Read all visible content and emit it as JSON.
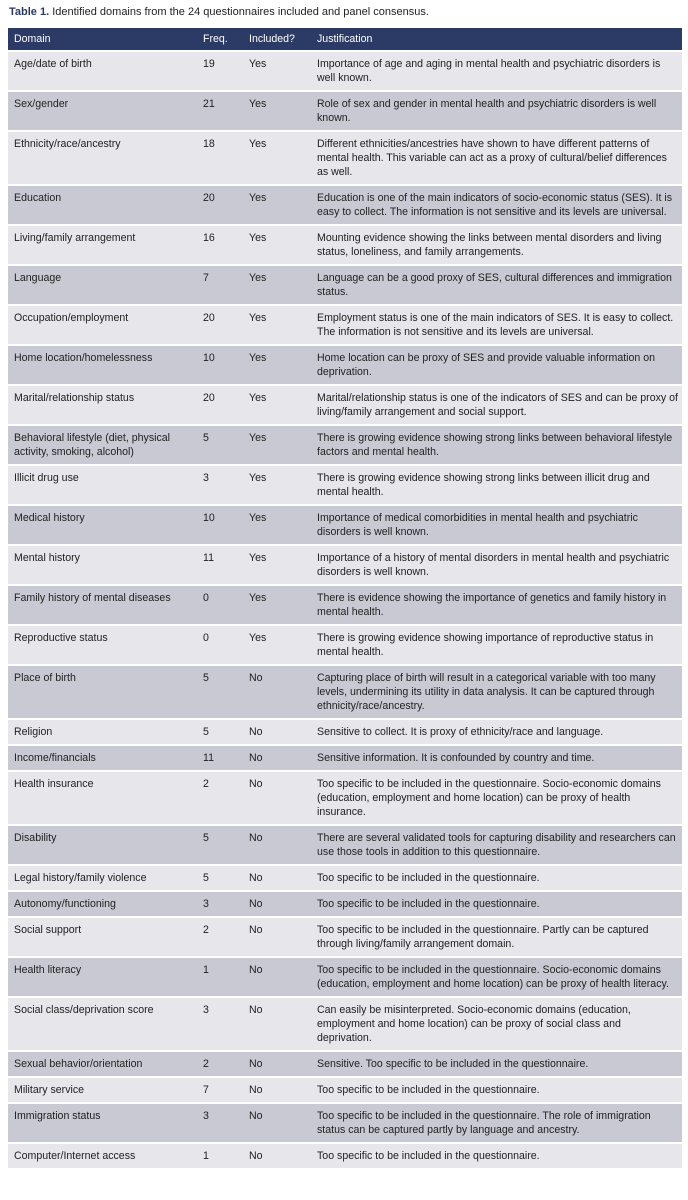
{
  "caption": {
    "label": "Table 1.",
    "text": "Identified domains from the 24 questionnaires included and panel consensus."
  },
  "colors": {
    "header": "#2c3b65",
    "row_light": "#e6e6eb",
    "row_dark": "#c9c9d3"
  },
  "headers": [
    "Domain",
    "Freq.",
    "Included?",
    "Justification"
  ],
  "rows": [
    [
      "Age/date of birth",
      "19",
      "Yes",
      "Importance of age and aging in mental health and psychiatric disorders is well known."
    ],
    [
      "Sex/gender",
      "21",
      "Yes",
      "Role of sex and gender in mental health and psychiatric disorders is well known."
    ],
    [
      "Ethnicity/race/ancestry",
      "18",
      "Yes",
      "Different ethnicities/ancestries have shown to have different patterns of mental health. This variable can act as a proxy of cultural/belief differences as well."
    ],
    [
      "Education",
      "20",
      "Yes",
      "Education is one of the main indicators of socio-economic status (SES). It is easy to collect. The information is not sensitive and its levels are universal."
    ],
    [
      "Living/family arrangement",
      "16",
      "Yes",
      "Mounting evidence showing the links between mental disorders and living status, loneliness, and family arrangements."
    ],
    [
      "Language",
      "7",
      "Yes",
      "Language can be a good proxy of SES, cultural differences and immigration status."
    ],
    [
      "Occupation/employment",
      "20",
      "Yes",
      "Employment status is one of the main indicators of SES. It is easy to collect. The information is not sensitive and its levels are universal."
    ],
    [
      "Home location/homelessness",
      "10",
      "Yes",
      "Home location can be proxy of SES and provide valuable information on deprivation."
    ],
    [
      "Marital/relationship status",
      "20",
      "Yes",
      "Marital/relationship status is one of the indicators of SES and can be proxy of living/family arrangement and social support."
    ],
    [
      "Behavioral lifestyle (diet, physical activity, smoking, alcohol)",
      "5",
      "Yes",
      "There is growing evidence showing strong links between behavioral lifestyle factors and mental health."
    ],
    [
      "Illicit drug use",
      "3",
      "Yes",
      "There is growing evidence showing strong links between illicit drug and mental health."
    ],
    [
      "Medical history",
      "10",
      "Yes",
      "Importance of medical comorbidities in mental health and psychiatric disorders is well known."
    ],
    [
      "Mental history",
      "11",
      "Yes",
      "Importance of a history of mental disorders in mental health and psychiatric disorders is well known."
    ],
    [
      "Family history of mental diseases",
      "0",
      "Yes",
      "There is evidence showing the importance of genetics and family history in mental health."
    ],
    [
      "Reproductive status",
      "0",
      "Yes",
      "There is growing evidence showing importance of reproductive status in mental health."
    ],
    [
      "Place of birth",
      "5",
      "No",
      "Capturing place of birth will result in a categorical variable with too many levels, undermining its utility in data analysis. It can be captured through ethnicity/race/ancestry."
    ],
    [
      "Religion",
      "5",
      "No",
      "Sensitive to collect. It is proxy of ethnicity/race and language."
    ],
    [
      "Income/financials",
      "11",
      "No",
      "Sensitive information. It is confounded by country and time."
    ],
    [
      "Health insurance",
      "2",
      "No",
      "Too specific to be included in the questionnaire. Socio-economic domains (education, employment and home location) can be proxy of health insurance."
    ],
    [
      "Disability",
      "5",
      "No",
      "There are several validated tools for capturing disability and researchers can use those tools in addition to this questionnaire."
    ],
    [
      "Legal history/family violence",
      "5",
      "No",
      "Too specific to be included in the questionnaire."
    ],
    [
      "Autonomy/functioning",
      "3",
      "No",
      "Too specific to be included in the questionnaire."
    ],
    [
      "Social support",
      "2",
      "No",
      "Too specific to be included in the questionnaire. Partly can be captured through living/family arrangement domain."
    ],
    [
      "Health literacy",
      "1",
      "No",
      "Too specific to be included in the questionnaire. Socio-economic domains (education, employment and home location) can be proxy of health literacy."
    ],
    [
      "Social class/deprivation score",
      "3",
      "No",
      "Can easily be misinterpreted. Socio-economic domains (education, employment and home location) can be proxy of social class and deprivation."
    ],
    [
      "Sexual behavior/orientation",
      "2",
      "No",
      "Sensitive. Too specific to be included in the questionnaire."
    ],
    [
      "Military service",
      "7",
      "No",
      "Too specific to be included in the questionnaire."
    ],
    [
      "Immigration status",
      "3",
      "No",
      "Too specific to be included in the questionnaire. The role of immigration status can be captured partly by language and ancestry."
    ],
    [
      "Computer/Internet access",
      "1",
      "No",
      "Too specific to be included in the questionnaire."
    ]
  ]
}
